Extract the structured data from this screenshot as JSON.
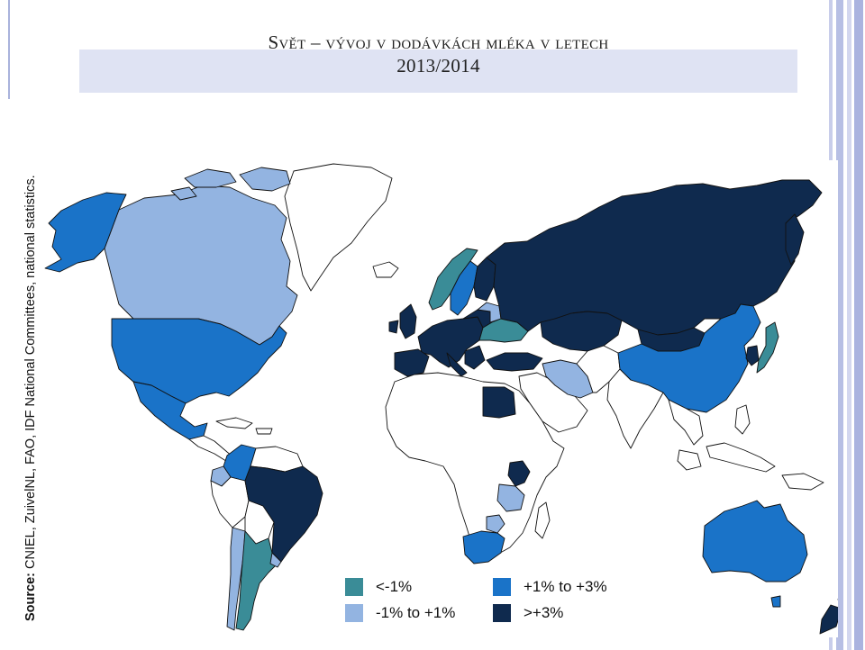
{
  "title": {
    "line1": "Svět – vývoj v dodávkách mléka v letech",
    "line2": "2013/2014"
  },
  "source": {
    "label": "Source:",
    "text": " CNIEL, ZuivelNL, FAO, IDF National Committees, national statistics."
  },
  "legend": [
    {
      "label": "<-1%",
      "color": "#3a8c97"
    },
    {
      "label": "-1% to +1%",
      "color": "#93b4e1"
    },
    {
      "label": "+1% to +3%",
      "color": "#1a73c8"
    },
    {
      "label": ">+3%",
      "color": "#0f2a4e"
    }
  ],
  "colors": {
    "decline": "#3a8c97",
    "stable": "#93b4e1",
    "growth": "#1a73c8",
    "strong_growth": "#0f2a4e",
    "no_data": "#ffffff",
    "title_band": "#dfe3f3"
  },
  "regions": [
    {
      "name": "Alaska",
      "category": "growth"
    },
    {
      "name": "Canada",
      "category": "stable"
    },
    {
      "name": "United States",
      "category": "growth"
    },
    {
      "name": "Mexico",
      "category": "growth"
    },
    {
      "name": "Colombia",
      "category": "growth"
    },
    {
      "name": "Ecuador",
      "category": "stable"
    },
    {
      "name": "Brazil",
      "category": "strong_growth"
    },
    {
      "name": "Chile",
      "category": "stable"
    },
    {
      "name": "Argentina",
      "category": "decline"
    },
    {
      "name": "Uruguay",
      "category": "stable"
    },
    {
      "name": "Norway",
      "category": "decline"
    },
    {
      "name": "Sweden",
      "category": "growth"
    },
    {
      "name": "Finland",
      "category": "strong_growth"
    },
    {
      "name": "Western Europe",
      "category": "strong_growth"
    },
    {
      "name": "Belarus",
      "category": "stable"
    },
    {
      "name": "Ukraine",
      "category": "decline"
    },
    {
      "name": "Turkey",
      "category": "strong_growth"
    },
    {
      "name": "Iran",
      "category": "stable"
    },
    {
      "name": "Russia",
      "category": "strong_growth"
    },
    {
      "name": "Kazakhstan",
      "category": "strong_growth"
    },
    {
      "name": "China",
      "category": "growth"
    },
    {
      "name": "Japan",
      "category": "decline"
    },
    {
      "name": "South Korea",
      "category": "strong_growth"
    },
    {
      "name": "Egypt",
      "category": "strong_growth"
    },
    {
      "name": "Kenya",
      "category": "strong_growth"
    },
    {
      "name": "Tanzania",
      "category": "stable"
    },
    {
      "name": "Zimbabwe",
      "category": "stable"
    },
    {
      "name": "South Africa",
      "category": "growth"
    },
    {
      "name": "Australia",
      "category": "growth"
    },
    {
      "name": "New Zealand",
      "category": "strong_growth"
    }
  ]
}
